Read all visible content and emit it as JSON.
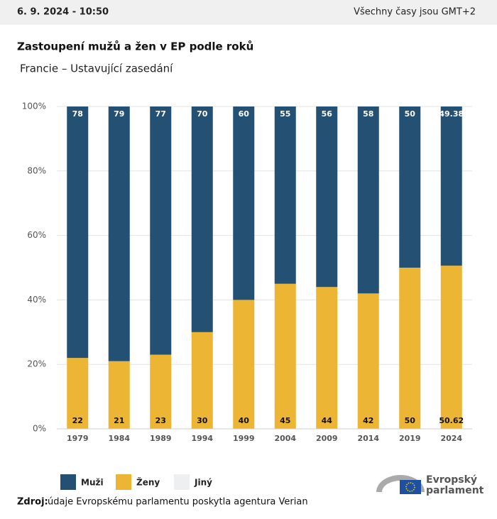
{
  "header": {
    "date": "6. 9. 2024 - 10:50",
    "timezone": "Všechny časy jsou GMT+2"
  },
  "chart_data": {
    "type": "stacked_bar",
    "title": "Zastoupení mužů a žen v EP podle roků",
    "subtitle": "Francie – Ustavující zasedání",
    "categories": [
      "1979",
      "1984",
      "1989",
      "1994",
      "1999",
      "2004",
      "2009",
      "2014",
      "2019",
      "2024"
    ],
    "series": [
      {
        "name": "Muži",
        "color": "#245173",
        "values": [
          78,
          79,
          77,
          70,
          60,
          55,
          56,
          58,
          50,
          49.38
        ]
      },
      {
        "name": "Ženy",
        "color": "#ecb533",
        "values": [
          22,
          21,
          23,
          30,
          40,
          45,
          44,
          42,
          50,
          50.62
        ]
      },
      {
        "name": "Jiný",
        "color": "#eeeff1",
        "values": [
          0,
          0,
          0,
          0,
          0,
          0,
          0,
          0,
          0,
          0
        ]
      }
    ],
    "ylim": [
      0,
      100
    ],
    "yticks": [
      {
        "value": 0,
        "label": "0%"
      },
      {
        "value": 20,
        "label": "20%"
      },
      {
        "value": 40,
        "label": "40%"
      },
      {
        "value": 60,
        "label": "60%"
      },
      {
        "value": 80,
        "label": "80%"
      },
      {
        "value": 100,
        "label": "100%"
      }
    ],
    "grid": true
  },
  "source": {
    "label": "Zdroj:",
    "text": "údaje Evropskému parlamentu poskytla agentura Verian"
  },
  "logo": {
    "line1": "Evropský",
    "line2": "parlament"
  }
}
